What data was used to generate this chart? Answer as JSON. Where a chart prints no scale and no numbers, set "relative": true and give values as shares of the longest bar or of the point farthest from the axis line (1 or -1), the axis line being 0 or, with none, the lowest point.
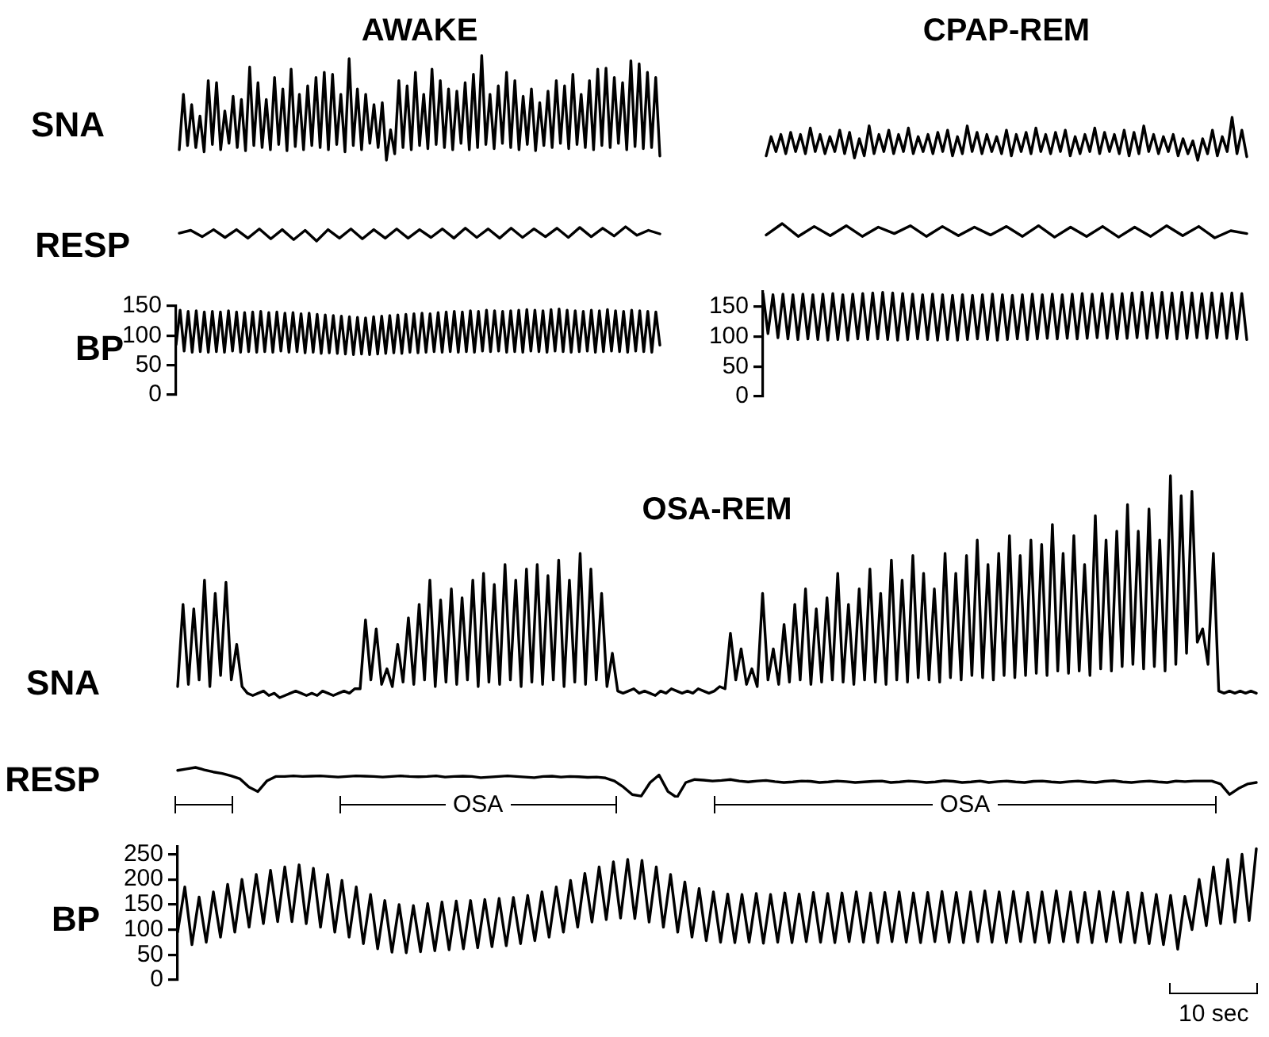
{
  "chart_data": [
    {
      "type": "line",
      "title": "AWAKE",
      "ylabel": "SNA",
      "relative": true,
      "tick_labels": false,
      "grid": false,
      "marker": "none",
      "categories": [
        null,
        null,
        null,
        null,
        null,
        null,
        null,
        null,
        null,
        null,
        null,
        null,
        null,
        null,
        null,
        null,
        null,
        null,
        null,
        null,
        null,
        null,
        null,
        null,
        null,
        null,
        null,
        null,
        null,
        null,
        null,
        null,
        null,
        null,
        null,
        null,
        null,
        null,
        null,
        null,
        null,
        null,
        null,
        null,
        null,
        null,
        null,
        null,
        null,
        null,
        null,
        null,
        null,
        null,
        null,
        null,
        null,
        null,
        null,
        null,
        null,
        null,
        null,
        null,
        null,
        null,
        null,
        null,
        null,
        null,
        null,
        null,
        null,
        null,
        null,
        null,
        null,
        null,
        null,
        null,
        null,
        null,
        null,
        null,
        null,
        null,
        null,
        null,
        null,
        null,
        null,
        null,
        null,
        null,
        null,
        null,
        null,
        null,
        null,
        null,
        null,
        null,
        null,
        null,
        null,
        null,
        null,
        null,
        null,
        null,
        null,
        null,
        null,
        null,
        null,
        null,
        null
      ],
      "series": [
        {
          "color": "#000000",
          "values": [
            0.1,
            0.63,
            0.14,
            0.53,
            0.12,
            0.42,
            0.08,
            0.76,
            0.15,
            0.74,
            0.1,
            0.47,
            0.16,
            0.61,
            0.12,
            0.58,
            0.09,
            0.89,
            0.14,
            0.74,
            0.12,
            0.58,
            0.1,
            0.79,
            0.15,
            0.68,
            0.09,
            0.87,
            0.13,
            0.63,
            0.1,
            0.71,
            0.14,
            0.79,
            0.12,
            0.84,
            0.1,
            0.82,
            0.15,
            0.63,
            0.08,
            0.97,
            0.14,
            0.68,
            0.1,
            0.63,
            0.16,
            0.53,
            0.12,
            0.55,
            0,
            0.29,
            0.06,
            0.76,
            0.12,
            0.71,
            0.1,
            0.84,
            0.14,
            0.63,
            0.11,
            0.87,
            0.15,
            0.76,
            0.12,
            0.68,
            0.1,
            0.66,
            0.16,
            0.74,
            0.1,
            0.82,
            0.12,
            1,
            0.15,
            0.63,
            0.11,
            0.71,
            0.16,
            0.84,
            0.12,
            0.76,
            0.1,
            0.61,
            0.15,
            0.68,
            0.09,
            0.55,
            0.14,
            0.66,
            0.12,
            0.76,
            0.16,
            0.71,
            0.11,
            0.82,
            0.15,
            0.63,
            0.12,
            0.76,
            0.1,
            0.87,
            0.14,
            0.88,
            0.12,
            0.79,
            0.16,
            0.74,
            0.1,
            0.95,
            0.13,
            0.92,
            0.11,
            0.84,
            0.12,
            0.79,
            0.04
          ]
        }
      ]
    },
    {
      "type": "line",
      "title": "CPAP-REM",
      "relative": true,
      "tick_labels": false,
      "grid": false,
      "marker": "none",
      "categories": [
        null,
        null,
        null,
        null,
        null,
        null,
        null,
        null,
        null,
        null,
        null,
        null,
        null,
        null,
        null,
        null,
        null,
        null,
        null,
        null,
        null,
        null,
        null,
        null,
        null,
        null,
        null,
        null,
        null,
        null,
        null,
        null,
        null,
        null,
        null,
        null,
        null,
        null,
        null,
        null,
        null,
        null,
        null,
        null,
        null,
        null,
        null,
        null,
        null,
        null,
        null,
        null,
        null,
        null,
        null,
        null,
        null,
        null,
        null,
        null,
        null,
        null,
        null,
        null,
        null,
        null,
        null,
        null,
        null,
        null,
        null,
        null,
        null,
        null,
        null,
        null,
        null,
        null,
        null,
        null,
        null,
        null,
        null,
        null,
        null,
        null,
        null,
        null,
        null,
        null,
        null,
        null,
        null,
        null,
        null,
        null,
        null,
        null,
        null
      ],
      "series": [
        {
          "color": "#000000",
          "values": [
            0.1,
            0.55,
            0.2,
            0.6,
            0.15,
            0.65,
            0.2,
            0.6,
            0.15,
            0.75,
            0.2,
            0.6,
            0.15,
            0.55,
            0.2,
            0.7,
            0.15,
            0.65,
            0.05,
            0.5,
            0.1,
            0.8,
            0.15,
            0.6,
            0.2,
            0.7,
            0.15,
            0.6,
            0.2,
            0.75,
            0.15,
            0.55,
            0.2,
            0.6,
            0.15,
            0.65,
            0.2,
            0.7,
            0.1,
            0.55,
            0.15,
            0.8,
            0.2,
            0.65,
            0.15,
            0.6,
            0.2,
            0.55,
            0.15,
            0.7,
            0.1,
            0.6,
            0.2,
            0.65,
            0.15,
            0.75,
            0.2,
            0.6,
            0.15,
            0.65,
            0.2,
            0.7,
            0.1,
            0.55,
            0.15,
            0.6,
            0.2,
            0.75,
            0.15,
            0.65,
            0.2,
            0.6,
            0.15,
            0.7,
            0.1,
            0.65,
            0.15,
            0.8,
            0.2,
            0.6,
            0.15,
            0.55,
            0.2,
            0.6,
            0.1,
            0.5,
            0.15,
            0.45,
            0,
            0.5,
            0.15,
            0.7,
            0.1,
            0.55,
            0.2,
            1,
            0.15,
            0.7,
            0.08
          ]
        }
      ]
    },
    {
      "type": "line",
      "ylabel": "RESP",
      "relative": true,
      "tick_labels": false,
      "grid": false,
      "marker": "none",
      "categories": [
        null,
        null,
        null,
        null,
        null,
        null,
        null,
        null,
        null,
        null,
        null,
        null,
        null,
        null,
        null,
        null,
        null,
        null,
        null,
        null,
        null,
        null,
        null,
        null,
        null,
        null,
        null,
        null,
        null,
        null,
        null,
        null,
        null,
        null,
        null,
        null,
        null,
        null,
        null,
        null,
        null,
        null,
        null
      ],
      "series": [
        {
          "color": "#000000",
          "values": [
            0.55,
            0.75,
            0.3,
            0.8,
            0.25,
            0.8,
            0.2,
            0.85,
            0.15,
            0.8,
            0.1,
            0.75,
            0,
            0.8,
            0.2,
            0.85,
            0.15,
            0.8,
            0.2,
            0.85,
            0.2,
            0.8,
            0.25,
            0.85,
            0.2,
            0.9,
            0.25,
            0.85,
            0.2,
            0.9,
            0.25,
            0.85,
            0.3,
            0.9,
            0.25,
            0.95,
            0.3,
            0.9,
            0.35,
            1,
            0.4,
            0.75,
            0.5
          ]
        }
      ]
    },
    {
      "type": "line",
      "relative": true,
      "tick_labels": false,
      "grid": false,
      "marker": "none",
      "categories": [
        null,
        null,
        null,
        null,
        null,
        null,
        null,
        null,
        null,
        null,
        null,
        null,
        null,
        null,
        null,
        null,
        null,
        null,
        null,
        null,
        null,
        null,
        null,
        null,
        null,
        null,
        null,
        null,
        null,
        null,
        null
      ],
      "series": [
        {
          "color": "#000000",
          "values": [
            0.2,
            1,
            0.1,
            0.8,
            0.15,
            0.85,
            0.1,
            0.75,
            0.3,
            0.85,
            0.1,
            0.8,
            0.15,
            0.75,
            0.2,
            0.8,
            0.1,
            0.85,
            0.05,
            0.75,
            0.1,
            0.8,
            0.05,
            0.75,
            0.1,
            0.85,
            0.15,
            0.8,
            0,
            0.5,
            0.3
          ]
        }
      ]
    },
    {
      "type": "line",
      "ylabel": "BP",
      "ylim": [
        0,
        150
      ],
      "yticks": [
        0,
        50,
        100,
        150
      ],
      "tick_labels": "y",
      "grid": false,
      "marker": "none",
      "categories": [
        null,
        null,
        null,
        null,
        null,
        null,
        null,
        null,
        null,
        null,
        null,
        null,
        null,
        null,
        null,
        null,
        null,
        null,
        null,
        null,
        null,
        null,
        null,
        null,
        null,
        null,
        null,
        null,
        null,
        null,
        null,
        null,
        null,
        null,
        null,
        null,
        null,
        null,
        null,
        null,
        null,
        null,
        null,
        null,
        null,
        null,
        null,
        null,
        null,
        null,
        null,
        null,
        null,
        null,
        null,
        null,
        null,
        null,
        null,
        null,
        null,
        null,
        null,
        null,
        null,
        null,
        null,
        null,
        null,
        null,
        null,
        null,
        null,
        null,
        null,
        null,
        null,
        null,
        null,
        null,
        null,
        null,
        null,
        null,
        null,
        null,
        null,
        null,
        null,
        null,
        null,
        null,
        null,
        null,
        null,
        null,
        null,
        null,
        null,
        null,
        null,
        null,
        null,
        null,
        null,
        null,
        null,
        null,
        null,
        null,
        null,
        null,
        null,
        null,
        null,
        null,
        null,
        null,
        null,
        null,
        null
      ],
      "series": [
        {
          "color": "#000000",
          "values": [
            85,
            143,
            74,
            141,
            72,
            142,
            73,
            140,
            72,
            141,
            73,
            140,
            72,
            142,
            74,
            140,
            72,
            139,
            73,
            140,
            72,
            141,
            73,
            139,
            72,
            140,
            74,
            138,
            72,
            139,
            73,
            137,
            71,
            138,
            72,
            136,
            70,
            135,
            71,
            134,
            70,
            133,
            69,
            132,
            68,
            131,
            69,
            130,
            68,
            132,
            69,
            133,
            70,
            134,
            71,
            135,
            70,
            136,
            72,
            137,
            71,
            138,
            72,
            137,
            73,
            139,
            72,
            140,
            73,
            141,
            72,
            140,
            73,
            142,
            72,
            141,
            74,
            143,
            73,
            142,
            74,
            141,
            72,
            142,
            73,
            143,
            72,
            144,
            74,
            143,
            73,
            142,
            72,
            144,
            74,
            145,
            73,
            143,
            72,
            142,
            73,
            141,
            74,
            143,
            72,
            142,
            73,
            144,
            74,
            142,
            73,
            141,
            72,
            143,
            74,
            142,
            73,
            141,
            72,
            140,
            84
          ]
        }
      ]
    },
    {
      "type": "line",
      "ylim": [
        0,
        175
      ],
      "yticks": [
        0,
        50,
        100,
        150
      ],
      "tick_labels": "y",
      "grid": false,
      "marker": "none",
      "categories": [
        null,
        null,
        null,
        null,
        null,
        null,
        null,
        null,
        null,
        null,
        null,
        null,
        null,
        null,
        null,
        null,
        null,
        null,
        null,
        null,
        null,
        null,
        null,
        null,
        null,
        null,
        null,
        null,
        null,
        null,
        null,
        null,
        null,
        null,
        null,
        null,
        null,
        null,
        null,
        null,
        null,
        null,
        null,
        null,
        null,
        null,
        null,
        null,
        null,
        null,
        null,
        null,
        null,
        null,
        null,
        null,
        null,
        null,
        null,
        null,
        null,
        null,
        null,
        null,
        null,
        null,
        null,
        null,
        null,
        null,
        null,
        null,
        null,
        null,
        null,
        null,
        null,
        null,
        null,
        null,
        null,
        null,
        null,
        null,
        null,
        null,
        null,
        null,
        null,
        null,
        null,
        null,
        null,
        null,
        null,
        null,
        null,
        null
      ],
      "series": [
        {
          "color": "#000000",
          "values": [
            172,
            105,
            170,
            98,
            171,
            96,
            170,
            95,
            171,
            96,
            170,
            95,
            171,
            94,
            172,
            95,
            170,
            94,
            171,
            96,
            172,
            95,
            173,
            96,
            174,
            95,
            173,
            94,
            172,
            95,
            171,
            96,
            170,
            95,
            171,
            94,
            170,
            95,
            169,
            94,
            170,
            95,
            169,
            96,
            170,
            95,
            171,
            94,
            170,
            95,
            169,
            96,
            170,
            95,
            171,
            96,
            170,
            97,
            171,
            96,
            170,
            97,
            171,
            96,
            172,
            97,
            171,
            98,
            172,
            97,
            171,
            96,
            172,
            97,
            173,
            98,
            174,
            97,
            173,
            98,
            174,
            97,
            173,
            96,
            174,
            97,
            173,
            98,
            172,
            97,
            173,
            98,
            172,
            97,
            173,
            96,
            172,
            95
          ]
        }
      ]
    },
    {
      "type": "line",
      "title": "OSA-REM",
      "ylabel": "SNA",
      "relative": true,
      "tick_labels": false,
      "grid": false,
      "marker": "none",
      "categories": [
        null,
        null,
        null,
        null,
        null,
        null,
        null,
        null,
        null,
        null,
        null,
        null,
        null,
        null,
        null,
        null,
        null,
        null,
        null,
        null,
        null,
        null,
        null,
        null,
        null,
        null,
        null,
        null,
        null,
        null,
        null,
        null,
        null,
        null,
        null,
        null,
        null,
        null,
        null,
        null,
        null,
        null,
        null,
        null,
        null,
        null,
        null,
        null,
        null,
        null,
        null,
        null,
        null,
        null,
        null,
        null,
        null,
        null,
        null,
        null,
        null,
        null,
        null,
        null,
        null,
        null,
        null,
        null,
        null,
        null,
        null,
        null,
        null,
        null,
        null,
        null,
        null,
        null,
        null,
        null,
        null,
        null,
        null,
        null,
        null,
        null,
        null,
        null,
        null,
        null,
        null,
        null,
        null,
        null,
        null,
        null,
        null,
        null,
        null,
        null,
        null,
        null,
        null,
        null,
        null,
        null,
        null,
        null,
        null,
        null,
        null,
        null,
        null,
        null,
        null,
        null,
        null,
        null,
        null,
        null,
        null,
        null,
        null,
        null,
        null,
        null,
        null,
        null,
        null,
        null,
        null,
        null,
        null,
        null,
        null,
        null,
        null,
        null,
        null,
        null,
        null,
        null,
        null,
        null,
        null,
        null,
        null,
        null,
        null,
        null,
        null,
        null,
        null,
        null,
        null,
        null,
        null,
        null,
        null,
        null,
        null,
        null,
        null,
        null,
        null,
        null,
        null,
        null,
        null,
        null,
        null,
        null,
        null,
        null,
        null,
        null,
        null,
        null,
        null,
        null,
        null,
        null,
        null,
        null,
        null,
        null,
        null,
        null,
        null,
        null,
        null,
        null,
        null,
        null,
        null,
        null,
        null,
        null,
        null,
        null,
        null,
        null
      ],
      "series": [
        {
          "color": "#000000",
          "values": [
            0.05,
            0.42,
            0.06,
            0.4,
            0.08,
            0.53,
            0.05,
            0.47,
            0.1,
            0.52,
            0.08,
            0.24,
            0.05,
            0.02,
            0.01,
            0.02,
            0.03,
            0.01,
            0.02,
            0,
            0.01,
            0.02,
            0.03,
            0.02,
            0.01,
            0.02,
            0.01,
            0.03,
            0.02,
            0.01,
            0.02,
            0.03,
            0.02,
            0.04,
            0.04,
            0.35,
            0.08,
            0.31,
            0.06,
            0.13,
            0.05,
            0.24,
            0.07,
            0.36,
            0.06,
            0.42,
            0.08,
            0.53,
            0.05,
            0.44,
            0.07,
            0.49,
            0.06,
            0.45,
            0.08,
            0.53,
            0.05,
            0.56,
            0.07,
            0.51,
            0.06,
            0.6,
            0.08,
            0.53,
            0.05,
            0.58,
            0.07,
            0.6,
            0.06,
            0.55,
            0.08,
            0.62,
            0.05,
            0.53,
            0.07,
            0.65,
            0.06,
            0.58,
            0.08,
            0.47,
            0.05,
            0.2,
            0.03,
            0.02,
            0.03,
            0.04,
            0.02,
            0.03,
            0.02,
            0.01,
            0.03,
            0.02,
            0.04,
            0.03,
            0.02,
            0.03,
            0.02,
            0.04,
            0.03,
            0.02,
            0.03,
            0.05,
            0.04,
            0.29,
            0.08,
            0.22,
            0.06,
            0.13,
            0.05,
            0.47,
            0.08,
            0.22,
            0.06,
            0.33,
            0.07,
            0.42,
            0.08,
            0.49,
            0.06,
            0.4,
            0.07,
            0.45,
            0.08,
            0.56,
            0.07,
            0.42,
            0.06,
            0.49,
            0.08,
            0.58,
            0.07,
            0.47,
            0.06,
            0.62,
            0.08,
            0.53,
            0.07,
            0.64,
            0.09,
            0.56,
            0.08,
            0.49,
            0.07,
            0.65,
            0.09,
            0.56,
            0.08,
            0.64,
            0.1,
            0.71,
            0.09,
            0.6,
            0.08,
            0.65,
            0.1,
            0.73,
            0.09,
            0.64,
            0.1,
            0.71,
            0.11,
            0.69,
            0.1,
            0.78,
            0.12,
            0.65,
            0.11,
            0.73,
            0.12,
            0.6,
            0.1,
            0.82,
            0.13,
            0.71,
            0.12,
            0.75,
            0.14,
            0.87,
            0.15,
            0.75,
            0.13,
            0.85,
            0.14,
            0.71,
            0.12,
            1,
            0.15,
            0.91,
            0.2,
            0.93,
            0.25,
            0.31,
            0.15,
            0.65,
            0.03,
            0.02,
            0.03,
            0.02,
            0.03,
            0.02,
            0.03,
            0.02
          ]
        }
      ]
    },
    {
      "type": "line",
      "ylabel": "RESP",
      "relative": true,
      "tick_labels": false,
      "grid": false,
      "marker": "none",
      "annotations": [
        "OSA",
        "OSA"
      ],
      "categories": [
        null,
        null,
        null,
        null,
        null,
        null,
        null,
        null,
        null,
        null,
        null,
        null,
        null,
        null,
        null,
        null,
        null,
        null,
        null,
        null,
        null,
        null,
        null,
        null,
        null,
        null,
        null,
        null,
        null,
        null,
        null,
        null,
        null,
        null,
        null,
        null,
        null,
        null,
        null,
        null,
        null,
        null,
        null,
        null,
        null,
        null,
        null,
        null,
        null,
        null,
        null,
        null,
        null,
        null,
        null,
        null,
        null,
        null,
        null,
        null,
        null,
        null,
        null,
        null,
        null,
        null,
        null,
        null,
        null,
        null,
        null,
        null,
        null,
        null,
        null,
        null,
        null,
        null,
        null,
        null,
        null,
        null,
        null,
        null,
        null,
        null,
        null,
        null,
        null,
        null,
        null,
        null,
        null,
        null,
        null,
        null,
        null,
        null,
        null,
        null,
        null,
        null,
        null,
        null,
        null,
        null,
        null,
        null,
        null,
        null,
        null,
        null,
        null,
        null,
        null,
        null,
        null,
        null,
        null,
        null,
        null,
        null
      ],
      "series": [
        {
          "color": "#000000",
          "values": [
            0.9,
            0.95,
            1,
            0.92,
            0.85,
            0.8,
            0.72,
            0.62,
            0.35,
            0.2,
            0.55,
            0.7,
            0.7,
            0.72,
            0.7,
            0.71,
            0.72,
            0.7,
            0.68,
            0.7,
            0.72,
            0.71,
            0.7,
            0.68,
            0.7,
            0.72,
            0.7,
            0.69,
            0.7,
            0.72,
            0.68,
            0.7,
            0.71,
            0.7,
            0.66,
            0.68,
            0.7,
            0.72,
            0.7,
            0.68,
            0.66,
            0.7,
            0.71,
            0.68,
            0.7,
            0.69,
            0.67,
            0.68,
            0.65,
            0.55,
            0.35,
            0.1,
            0.05,
            0.5,
            0.75,
            0.2,
            0,
            0.5,
            0.6,
            0.58,
            0.55,
            0.57,
            0.6,
            0.55,
            0.52,
            0.55,
            0.57,
            0.53,
            0.5,
            0.52,
            0.55,
            0.54,
            0.5,
            0.52,
            0.55,
            0.53,
            0.5,
            0.52,
            0.54,
            0.55,
            0.5,
            0.52,
            0.55,
            0.53,
            0.5,
            0.52,
            0.56,
            0.54,
            0.5,
            0.52,
            0.55,
            0.5,
            0.53,
            0.55,
            0.52,
            0.5,
            0.54,
            0.55,
            0.52,
            0.5,
            0.53,
            0.55,
            0.52,
            0.5,
            0.54,
            0.56,
            0.52,
            0.5,
            0.53,
            0.55,
            0.52,
            0.5,
            0.55,
            0.53,
            0.55,
            0.55,
            0.55,
            0.45,
            0.1,
            0.3,
            0.45,
            0.5
          ]
        }
      ]
    },
    {
      "type": "line",
      "ylabel": "BP",
      "ylim": [
        0,
        265
      ],
      "yticks": [
        0,
        50,
        100,
        150,
        200,
        250
      ],
      "tick_labels": "y",
      "grid": false,
      "marker": "none",
      "annotations": [
        "10 sec"
      ],
      "categories": [
        null,
        null,
        null,
        null,
        null,
        null,
        null,
        null,
        null,
        null,
        null,
        null,
        null,
        null,
        null,
        null,
        null,
        null,
        null,
        null,
        null,
        null,
        null,
        null,
        null,
        null,
        null,
        null,
        null,
        null,
        null,
        null,
        null,
        null,
        null,
        null,
        null,
        null,
        null,
        null,
        null,
        null,
        null,
        null,
        null,
        null,
        null,
        null,
        null,
        null,
        null,
        null,
        null,
        null,
        null,
        null,
        null,
        null,
        null,
        null,
        null,
        null,
        null,
        null,
        null,
        null,
        null,
        null,
        null,
        null,
        null,
        null,
        null,
        null,
        null,
        null,
        null,
        null,
        null,
        null,
        null,
        null,
        null,
        null,
        null,
        null,
        null,
        null,
        null,
        null,
        null,
        null,
        null,
        null,
        null,
        null,
        null,
        null,
        null,
        null,
        null,
        null,
        null,
        null,
        null,
        null,
        null,
        null,
        null,
        null,
        null,
        null,
        null,
        null,
        null,
        null,
        null,
        null,
        null,
        null,
        null,
        null,
        null,
        null,
        null,
        null,
        null,
        null,
        null,
        null,
        null,
        null,
        null,
        null,
        null,
        null,
        null,
        null,
        null,
        null,
        null,
        null,
        null,
        null,
        null,
        null,
        null,
        null,
        null,
        null,
        null,
        null
      ],
      "series": [
        {
          "color": "#000000",
          "values": [
            95,
            185,
            70,
            165,
            75,
            175,
            85,
            190,
            95,
            200,
            105,
            210,
            112,
            218,
            116,
            225,
            116,
            229,
            112,
            222,
            105,
            210,
            95,
            198,
            85,
            185,
            72,
            170,
            62,
            158,
            55,
            150,
            54,
            148,
            56,
            152,
            58,
            155,
            60,
            157,
            62,
            158,
            64,
            160,
            66,
            162,
            68,
            164,
            72,
            168,
            78,
            175,
            85,
            185,
            95,
            198,
            105,
            212,
            115,
            225,
            120,
            235,
            123,
            240,
            122,
            238,
            115,
            225,
            105,
            210,
            95,
            195,
            85,
            182,
            78,
            175,
            75,
            171,
            74,
            170,
            75,
            172,
            73,
            170,
            75,
            173,
            74,
            171,
            76,
            174,
            75,
            172,
            74,
            173,
            76,
            175,
            75,
            173,
            74,
            174,
            76,
            175,
            75,
            173,
            74,
            174,
            76,
            176,
            75,
            174,
            74,
            175,
            76,
            177,
            75,
            175,
            74,
            176,
            76,
            174,
            75,
            175,
            74,
            177,
            76,
            175,
            75,
            174,
            74,
            176,
            76,
            175,
            75,
            174,
            74,
            173,
            72,
            170,
            70,
            168,
            61,
            166,
            100,
            200,
            108,
            225,
            112,
            240,
            115,
            250,
            118,
            261
          ]
        }
      ]
    }
  ]
}
